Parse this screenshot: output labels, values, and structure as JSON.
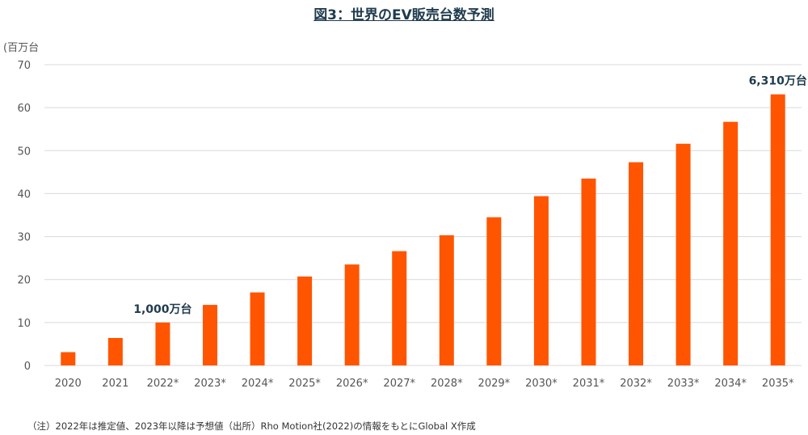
{
  "title": "図3：世界のEV販売台数予測",
  "note": "（注）2022年は推定値、2023年以降は予想値（出所）Rho Motion社(2022)の情報をもとにGlobal X作成",
  "colors": {
    "bar": "#ff5500",
    "grid": "#d9d9d9",
    "annotation": "#1f3b4d"
  },
  "chart_data": {
    "type": "bar",
    "title": "図3：世界のEV販売台数予測",
    "ylabel": "(百万台",
    "xlabel": "",
    "ylim": [
      0,
      70
    ],
    "yticks": [
      0,
      10,
      20,
      30,
      40,
      50,
      60,
      70
    ],
    "grid": true,
    "categories": [
      "2020",
      "2021",
      "2022*",
      "2023*",
      "2024*",
      "2025*",
      "2026*",
      "2027*",
      "2028*",
      "2029*",
      "2030*",
      "2031*",
      "2032*",
      "2033*",
      "2034*",
      "2035*"
    ],
    "values": [
      3.1,
      6.4,
      10.0,
      14.1,
      17.0,
      20.7,
      23.5,
      26.6,
      30.3,
      34.5,
      39.4,
      43.5,
      47.3,
      51.6,
      56.7,
      63.1
    ],
    "annotations": [
      {
        "index": 2,
        "text": "1,000万台"
      },
      {
        "index": 15,
        "text": "6,310万台"
      }
    ]
  }
}
